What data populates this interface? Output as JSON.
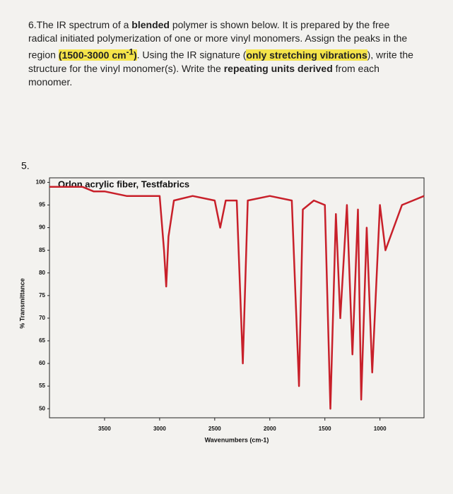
{
  "question": {
    "parts": [
      "6.The IR spectrum of a ",
      "blended",
      " polymer is shown below. It is prepared by the free radical initiated polymerization of one or more vinyl monomers. Assign the peaks in the region ",
      "(1500-3000 cm",
      "-1",
      ")",
      ". Using the IR signature (",
      "only stretching vibrations",
      "), write the structure for the vinyl monomer(s).  Write the ",
      "repeating units derived",
      " from each monomer."
    ]
  },
  "problem_label": "5.",
  "chart_data": {
    "type": "line",
    "title": "Orlon acrylic fiber, Testfabrics",
    "x_label": "Wavenumbers (cm-1)",
    "y_label": "% Transmittance",
    "x": [
      4000,
      3700,
      3600,
      3500,
      3300,
      3000,
      2960,
      2940,
      2920,
      2870,
      2700,
      2500,
      2450,
      2400,
      2300,
      2245,
      2200,
      2000,
      1800,
      1735,
      1700,
      1600,
      1500,
      1450,
      1400,
      1360,
      1300,
      1250,
      1200,
      1170,
      1120,
      1070,
      1000,
      950,
      800,
      700,
      600
    ],
    "values": [
      99,
      99,
      98,
      98,
      97,
      97,
      85,
      77,
      88,
      96,
      97,
      96,
      90,
      96,
      96,
      60,
      96,
      97,
      96,
      55,
      94,
      96,
      95,
      50,
      93,
      70,
      95,
      62,
      94,
      52,
      90,
      58,
      95,
      85,
      95,
      96,
      97
    ],
    "color": "#c8202a",
    "xlim": [
      4000,
      600
    ],
    "ylim": [
      48,
      101
    ],
    "xticks": [
      3500,
      3000,
      2500,
      2000,
      1500,
      1000
    ],
    "yticks": [
      50,
      55,
      60,
      65,
      70,
      75,
      80,
      85,
      90,
      95,
      100
    ],
    "grid": false
  }
}
